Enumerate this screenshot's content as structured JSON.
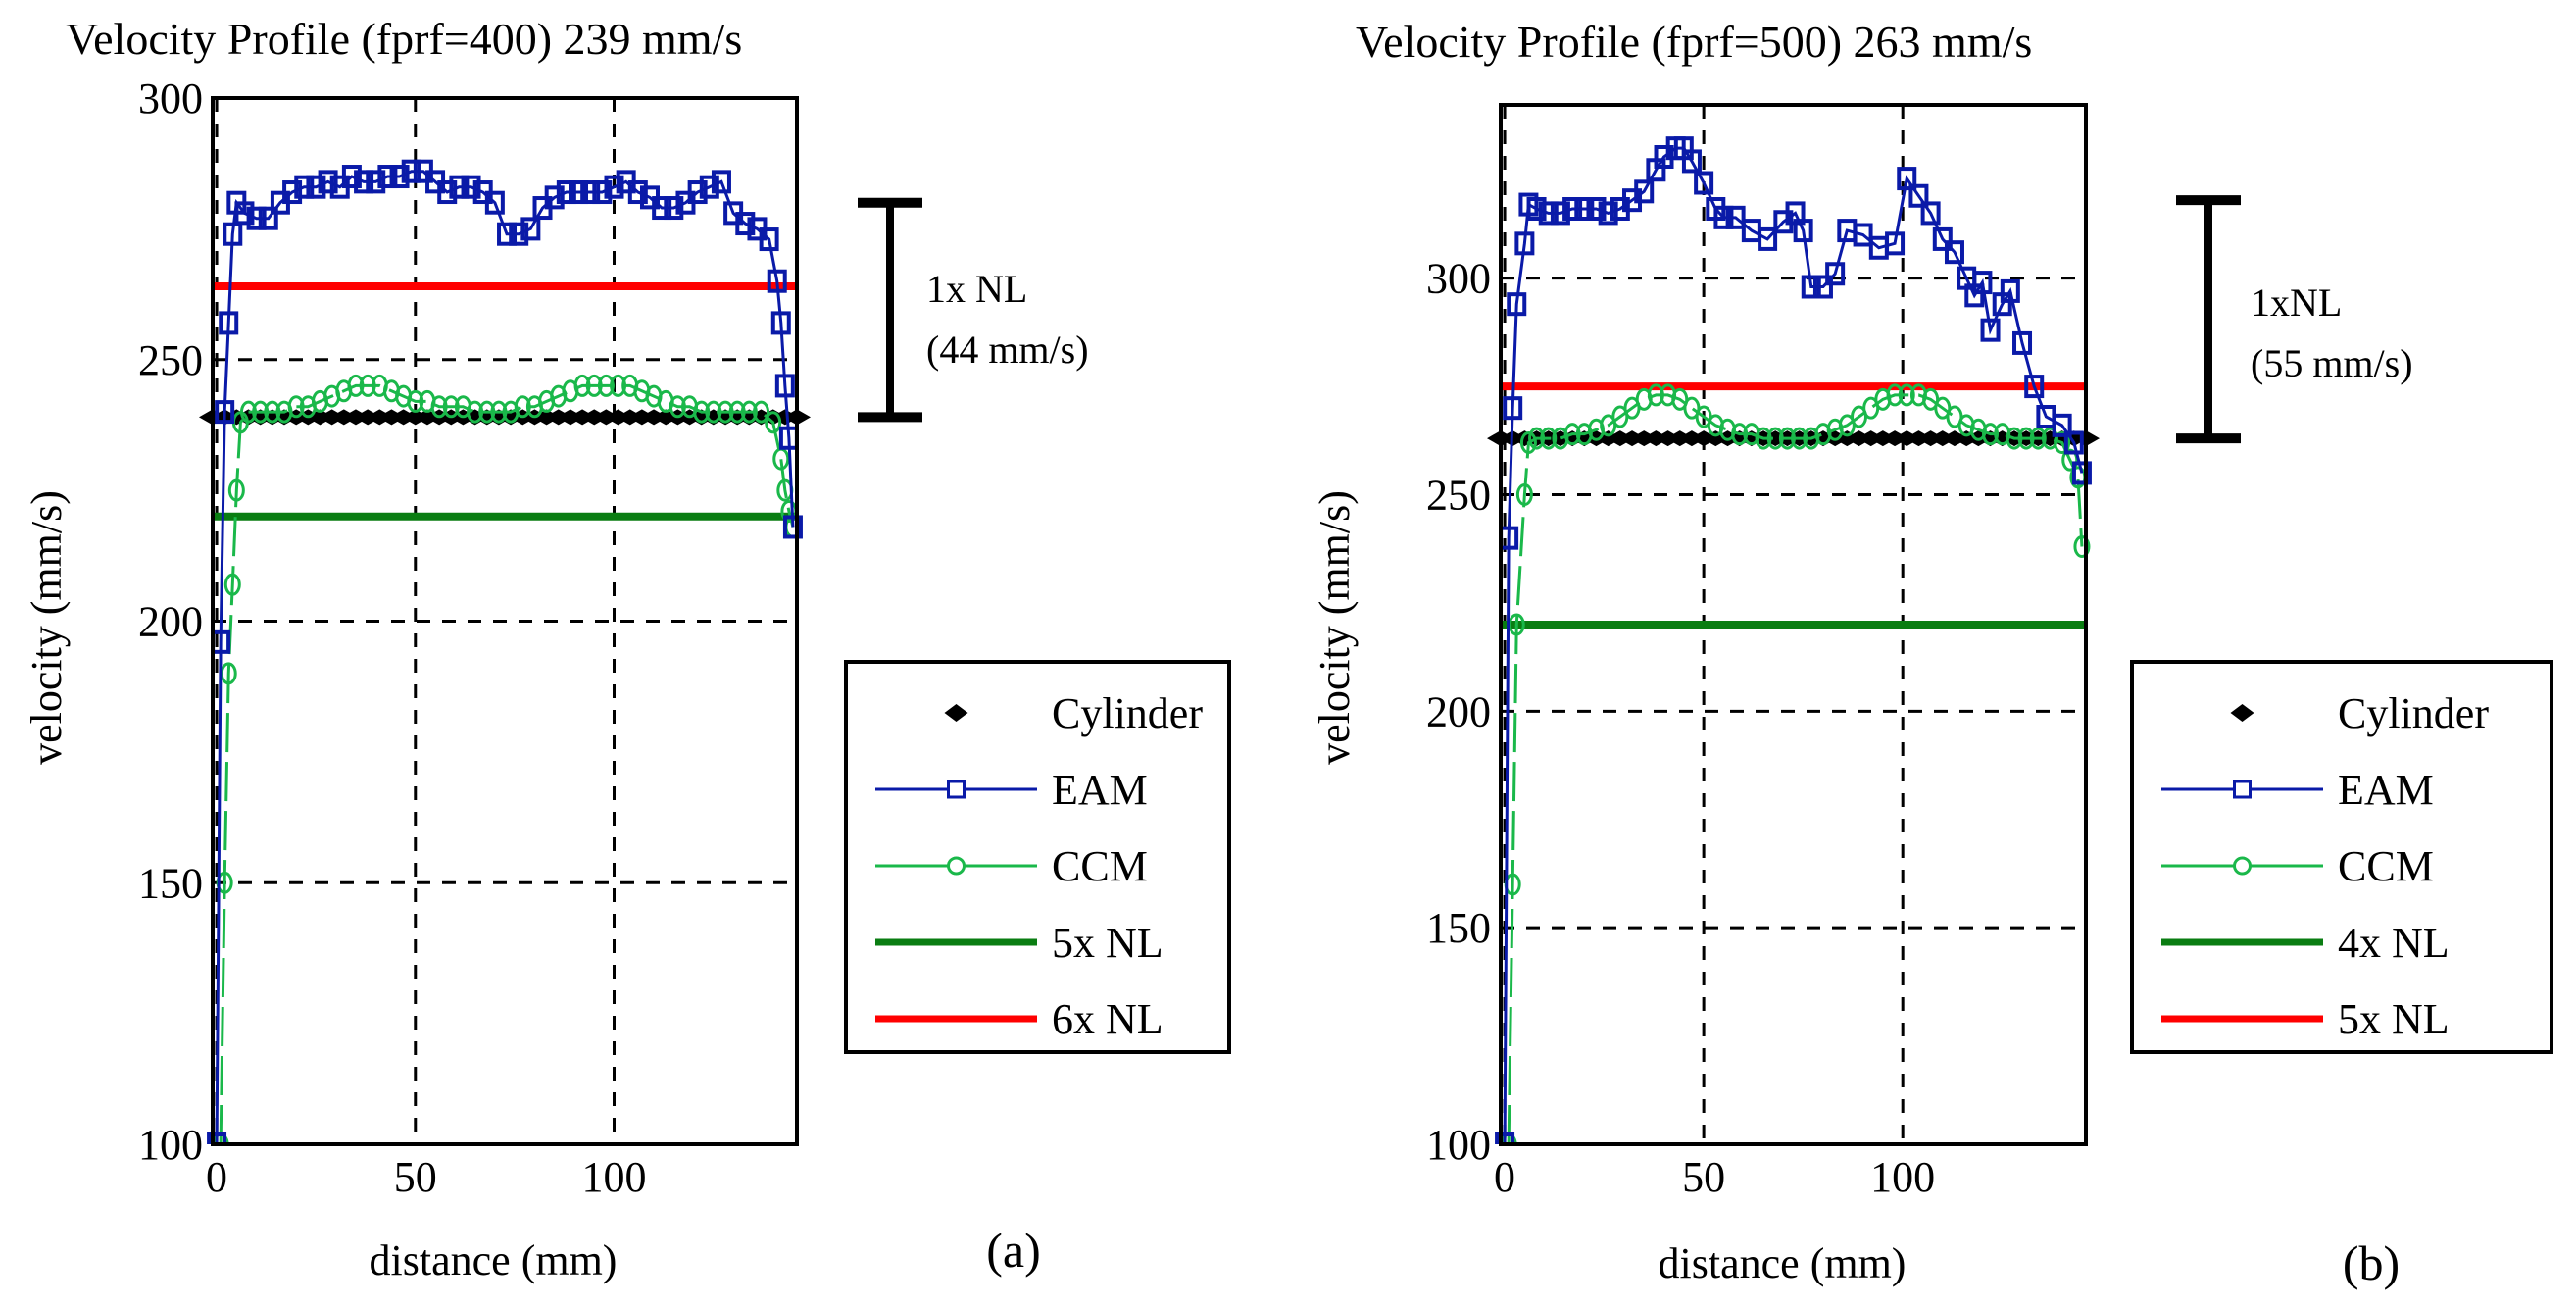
{
  "chart_data": [
    {
      "type": "line",
      "title": "Velocity Profile (fprf=400) 239 mm/s",
      "xlabel": "distance (mm)",
      "ylabel": "velocity (mm/s)",
      "panel_label": "(a)",
      "xlim": [
        -1,
        146
      ],
      "ylim": [
        100,
        300
      ],
      "xticks": [
        0,
        50,
        100
      ],
      "yticks": [
        100,
        150,
        200,
        250,
        300
      ],
      "grid": true,
      "legend_position": "right",
      "annotation": {
        "line1": "1x NL",
        "line2": "(44 mm/s)",
        "from": 239,
        "to": 280
      },
      "series": [
        {
          "name": "Cylinder",
          "kind": "markers-diamond",
          "color": "#000000",
          "x": [
            -1,
            2,
            5,
            8,
            11,
            14,
            17,
            20,
            23,
            26,
            29,
            32,
            35,
            38,
            41,
            44,
            47,
            50,
            53,
            56,
            59,
            62,
            65,
            68,
            71,
            74,
            77,
            80,
            83,
            86,
            89,
            92,
            95,
            98,
            101,
            104,
            107,
            110,
            113,
            116,
            119,
            122,
            125,
            128,
            131,
            134,
            137,
            140,
            143,
            146
          ],
          "y": [
            239,
            239,
            239,
            239,
            239,
            239,
            239,
            239,
            239,
            239,
            239,
            239,
            239,
            239,
            239,
            239,
            239,
            239,
            239,
            239,
            239,
            239,
            239,
            239,
            239,
            239,
            239,
            239,
            239,
            239,
            239,
            239,
            239,
            239,
            239,
            239,
            239,
            239,
            239,
            239,
            239,
            239,
            239,
            239,
            239,
            239,
            239,
            239,
            239,
            239
          ]
        },
        {
          "name": "EAM",
          "kind": "line-square",
          "color": "#0a1aa8",
          "x": [
            0,
            1,
            2,
            3,
            4,
            5,
            7,
            10,
            13,
            16,
            19,
            22,
            25,
            28,
            31,
            34,
            37,
            40,
            43,
            46,
            49,
            52,
            55,
            58,
            61,
            64,
            67,
            70,
            73,
            76,
            79,
            82,
            85,
            88,
            91,
            94,
            97,
            100,
            103,
            106,
            109,
            112,
            115,
            118,
            121,
            124,
            127,
            130,
            133,
            136,
            139,
            141,
            142,
            143,
            144,
            145
          ],
          "y": [
            100,
            196,
            240,
            257,
            274,
            280,
            278,
            277,
            277,
            280,
            282,
            283,
            283,
            284,
            283,
            285,
            284,
            284,
            285,
            285,
            286,
            286,
            284,
            282,
            283,
            283,
            282,
            280,
            274,
            274,
            275,
            279,
            281,
            282,
            282,
            282,
            282,
            283,
            284,
            282,
            281,
            279,
            279,
            280,
            282,
            283,
            284,
            278,
            276,
            275,
            273,
            265,
            257,
            245,
            235,
            218
          ]
        },
        {
          "name": "CCM",
          "kind": "line-circle",
          "color": "#1ab84a",
          "x": [
            1,
            2,
            3,
            4,
            5,
            6,
            8,
            11,
            14,
            17,
            20,
            23,
            26,
            29,
            32,
            35,
            38,
            41,
            44,
            47,
            50,
            53,
            56,
            59,
            62,
            65,
            68,
            71,
            74,
            77,
            80,
            83,
            86,
            89,
            92,
            95,
            98,
            101,
            104,
            107,
            110,
            113,
            116,
            119,
            122,
            125,
            128,
            131,
            134,
            137,
            140,
            142,
            143,
            144,
            145
          ],
          "y": [
            100,
            150,
            190,
            207,
            225,
            238,
            240,
            240,
            240,
            240,
            241,
            241,
            242,
            243,
            244,
            245,
            245,
            245,
            244,
            243,
            242,
            242,
            241,
            241,
            241,
            240,
            240,
            240,
            240,
            241,
            241,
            242,
            243,
            244,
            245,
            245,
            245,
            245,
            245,
            244,
            243,
            242,
            241,
            241,
            240,
            240,
            240,
            240,
            240,
            240,
            238,
            231,
            225,
            221,
            218
          ]
        },
        {
          "name": "5x NL",
          "kind": "hline",
          "color": "#0a7d12",
          "x": [
            -1,
            146
          ],
          "y": [
            220,
            220
          ]
        },
        {
          "name": "6x NL",
          "kind": "hline",
          "color": "#ff0000",
          "x": [
            -1,
            146
          ],
          "y": [
            264,
            264
          ]
        }
      ]
    },
    {
      "type": "line",
      "title": "Velocity Profile (fprf=500) 263 mm/s",
      "xlabel": "distance (mm)",
      "ylabel": "velocity (mm/s)",
      "panel_label": "(b)",
      "xlim": [
        -1,
        146
      ],
      "ylim": [
        100,
        340
      ],
      "xticks": [
        0,
        50,
        100
      ],
      "yticks": [
        100,
        150,
        200,
        250,
        300
      ],
      "grid": true,
      "legend_position": "right",
      "annotation": {
        "line1": "1xNL",
        "line2": "(55 mm/s)",
        "from": 263,
        "to": 318
      },
      "series": [
        {
          "name": "Cylinder",
          "kind": "markers-diamond",
          "color": "#000000",
          "x": [
            -1,
            2,
            5,
            8,
            11,
            14,
            17,
            20,
            23,
            26,
            29,
            32,
            35,
            38,
            41,
            44,
            47,
            50,
            53,
            56,
            59,
            62,
            65,
            68,
            71,
            74,
            77,
            80,
            83,
            86,
            89,
            92,
            95,
            98,
            101,
            104,
            107,
            110,
            113,
            116,
            119,
            122,
            125,
            128,
            131,
            134,
            137,
            140,
            143,
            146
          ],
          "y": [
            263,
            263,
            263,
            263,
            263,
            263,
            263,
            263,
            263,
            263,
            263,
            263,
            263,
            263,
            263,
            263,
            263,
            263,
            263,
            263,
            263,
            263,
            263,
            263,
            263,
            263,
            263,
            263,
            263,
            263,
            263,
            263,
            263,
            263,
            263,
            263,
            263,
            263,
            263,
            263,
            263,
            263,
            263,
            263,
            263,
            263,
            263,
            263,
            263,
            263
          ]
        },
        {
          "name": "EAM",
          "kind": "line-square",
          "color": "#0a1aa8",
          "x": [
            0,
            1,
            2,
            3,
            5,
            6,
            8,
            11,
            14,
            17,
            20,
            23,
            26,
            29,
            32,
            35,
            38,
            40,
            43,
            45,
            47,
            50,
            53,
            55,
            58,
            62,
            66,
            70,
            73,
            75,
            77,
            80,
            83,
            86,
            90,
            94,
            98,
            101,
            104,
            107,
            110,
            113,
            116,
            118,
            120,
            122,
            125,
            127,
            130,
            133,
            136,
            140,
            143,
            145
          ],
          "y": [
            100,
            240,
            270,
            294,
            308,
            317,
            316,
            315,
            315,
            316,
            316,
            316,
            315,
            316,
            318,
            320,
            325,
            328,
            330,
            330,
            327,
            322,
            316,
            314,
            314,
            311,
            309,
            313,
            315,
            311,
            298,
            298,
            301,
            311,
            310,
            307,
            308,
            323,
            319,
            315,
            309,
            306,
            300,
            296,
            299,
            288,
            294,
            297,
            285,
            275,
            268,
            266,
            262,
            255
          ]
        },
        {
          "name": "CCM",
          "kind": "line-circle",
          "color": "#1ab84a",
          "x": [
            1,
            2,
            3,
            5,
            6,
            8,
            11,
            14,
            17,
            20,
            23,
            26,
            29,
            32,
            35,
            38,
            41,
            44,
            47,
            50,
            53,
            56,
            59,
            62,
            65,
            68,
            71,
            74,
            77,
            80,
            83,
            86,
            89,
            92,
            95,
            98,
            101,
            104,
            107,
            110,
            113,
            116,
            119,
            122,
            125,
            128,
            131,
            134,
            137,
            140,
            142,
            144,
            145
          ],
          "y": [
            100,
            160,
            220,
            250,
            262,
            263,
            263,
            263,
            264,
            264,
            265,
            266,
            268,
            270,
            272,
            273,
            273,
            272,
            270,
            268,
            266,
            265,
            264,
            264,
            263,
            263,
            263,
            263,
            263,
            264,
            265,
            266,
            268,
            270,
            272,
            273,
            273,
            273,
            272,
            270,
            268,
            266,
            265,
            264,
            264,
            263,
            263,
            263,
            263,
            262,
            258,
            254,
            238
          ]
        },
        {
          "name": "4x NL",
          "kind": "hline",
          "color": "#0a7d12",
          "x": [
            -1,
            146
          ],
          "y": [
            220,
            220
          ]
        },
        {
          "name": "5x NL",
          "kind": "hline",
          "color": "#ff0000",
          "x": [
            -1,
            146
          ],
          "y": [
            275,
            275
          ]
        }
      ]
    }
  ]
}
